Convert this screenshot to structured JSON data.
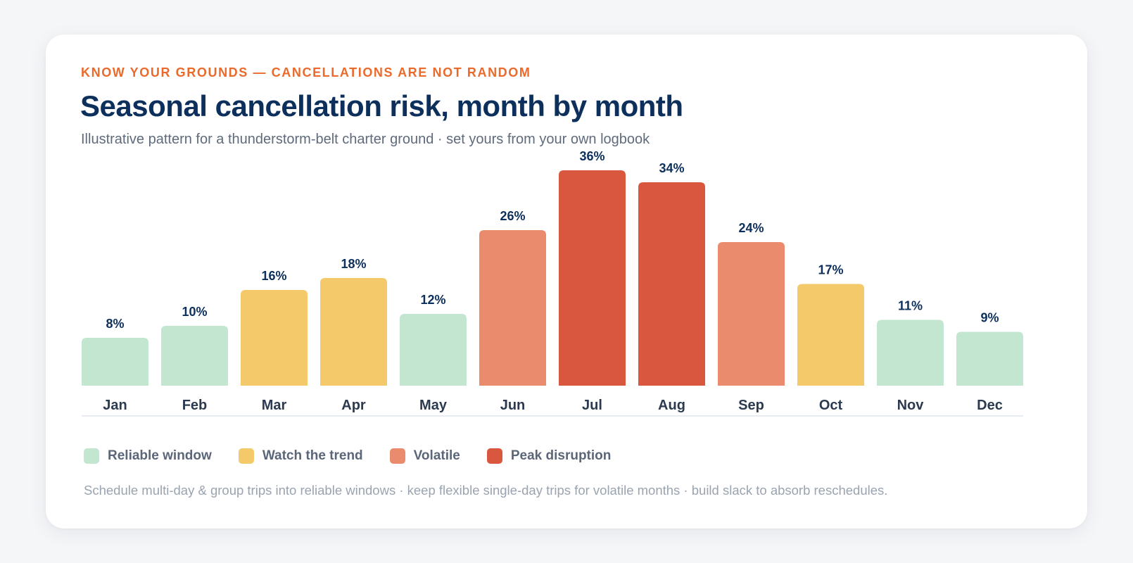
{
  "eyebrow": "KNOW YOUR GROUNDS — CANCELLATIONS ARE NOT RANDOM",
  "title": "Seasonal cancellation risk, month by month",
  "subtitle": "Illustrative pattern for a thunderstorm-belt charter ground · set yours from your own logbook",
  "chart_data": {
    "type": "bar",
    "categories": [
      "Jan",
      "Feb",
      "Mar",
      "Apr",
      "May",
      "Jun",
      "Jul",
      "Aug",
      "Sep",
      "Oct",
      "Nov",
      "Dec"
    ],
    "values": [
      8,
      10,
      16,
      18,
      12,
      26,
      36,
      34,
      24,
      17,
      11,
      9
    ],
    "value_labels": [
      "8%",
      "10%",
      "16%",
      "18%",
      "12%",
      "26%",
      "36%",
      "34%",
      "24%",
      "17%",
      "11%",
      "9%"
    ],
    "bar_tiers": [
      "reliable",
      "reliable",
      "watch",
      "watch",
      "reliable",
      "volatile",
      "peak",
      "peak",
      "volatile",
      "watch",
      "reliable",
      "reliable"
    ],
    "unit": "%",
    "ylim": [
      0,
      36
    ],
    "grid": false,
    "legend_placement": "bottom-left",
    "xlabel": "",
    "ylabel": ""
  },
  "legend": [
    {
      "tier": "reliable",
      "label": "Reliable window",
      "color": "#c3e6d0"
    },
    {
      "tier": "watch",
      "label": "Watch the trend",
      "color": "#f3c96a"
    },
    {
      "tier": "volatile",
      "label": "Volatile",
      "color": "#e98b6c"
    },
    {
      "tier": "peak",
      "label": "Peak disruption",
      "color": "#d9573e"
    }
  ],
  "colors": {
    "accent": "#ea6a2c",
    "title": "#0c2f5c",
    "value_label": "#0c2f5c",
    "category_label": "#2b3a4f",
    "baseline": "#e8ebef"
  },
  "footnote": "Schedule multi-day & group trips into reliable windows · keep flexible single-day trips for volatile months · build slack to absorb reschedules."
}
